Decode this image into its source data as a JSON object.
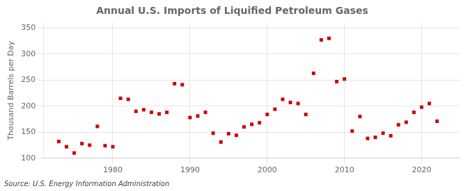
{
  "chart_data": {
    "type": "scatter",
    "title": "Annual U.S. Imports of Liquified Petroleum Gases",
    "ylabel": "Thousand Barrels per Day",
    "source": "Source: U.S. Energy Information Administration",
    "x": [
      1973,
      1974,
      1975,
      1976,
      1977,
      1978,
      1979,
      1980,
      1981,
      1982,
      1983,
      1984,
      1985,
      1986,
      1987,
      1988,
      1989,
      1990,
      1991,
      1992,
      1993,
      1994,
      1995,
      1996,
      1997,
      1998,
      1999,
      2000,
      2001,
      2002,
      2003,
      2004,
      2005,
      2006,
      2007,
      2008,
      2009,
      2010,
      2011,
      2012,
      2013,
      2014,
      2015,
      2016,
      2017,
      2018,
      2019,
      2020,
      2021,
      2022
    ],
    "values": [
      132,
      122,
      110,
      128,
      125,
      161,
      124,
      122,
      215,
      213,
      190,
      193,
      188,
      185,
      188,
      243,
      241,
      178,
      181,
      188,
      148,
      131,
      147,
      144,
      160,
      165,
      168,
      184,
      194,
      213,
      207,
      205,
      184,
      263,
      327,
      330,
      247,
      252,
      152,
      180,
      138,
      140,
      148,
      143,
      164,
      169,
      188,
      198,
      205,
      171
    ],
    "color": "#cc0000",
    "marker": "square",
    "xlim": [
      1971,
      2025
    ],
    "xticks": [
      1980,
      1990,
      2000,
      2010,
      2020
    ],
    "ylim": [
      100,
      360
    ],
    "yticks": [
      100,
      150,
      200,
      250,
      300,
      350
    ],
    "grid": true
  }
}
